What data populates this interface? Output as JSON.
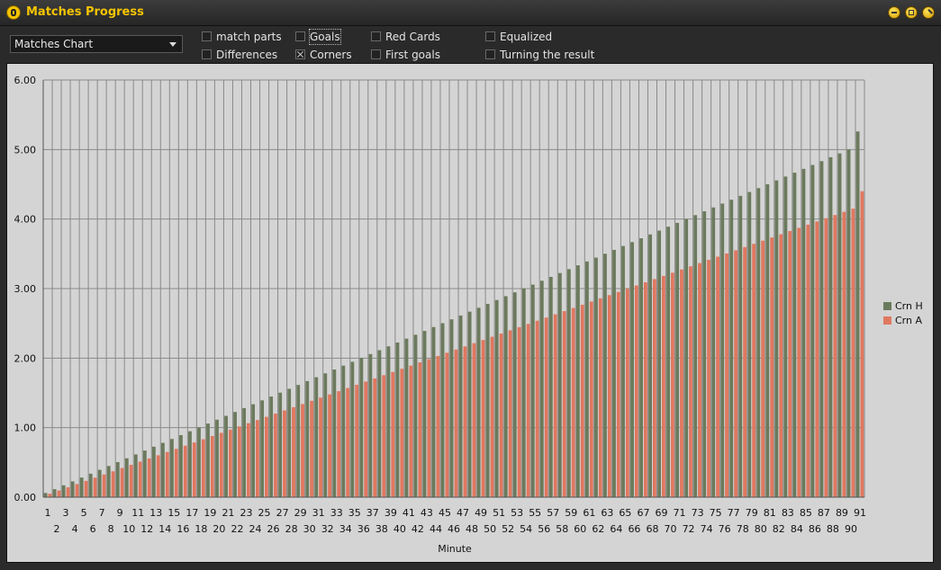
{
  "window": {
    "title": "Matches Progress"
  },
  "toolbar": {
    "chart_select": "Matches Chart",
    "checkboxes": [
      {
        "label": "match parts",
        "checked": false
      },
      {
        "label": "Goals",
        "checked": false
      },
      {
        "label": "Red Cards",
        "checked": false
      },
      {
        "label": "Equalized",
        "checked": false
      },
      {
        "label": "Differences",
        "checked": false
      },
      {
        "label": "Corners",
        "checked": true
      },
      {
        "label": "First goals",
        "checked": false
      },
      {
        "label": "Turning the result",
        "checked": false
      }
    ]
  },
  "colors": {
    "series_h": "#6b7a5c",
    "series_a": "#e07860",
    "accent": "#f5c400"
  },
  "chart_data": {
    "type": "bar",
    "xlabel": "Minute",
    "ylabel": "",
    "ylim": [
      0,
      6
    ],
    "yticks": [
      "0.00",
      "1.00",
      "2.00",
      "3.00",
      "4.00",
      "5.00",
      "6.00"
    ],
    "legend": "right",
    "grid": true,
    "x_start": 1,
    "x_end": 91,
    "series": [
      {
        "name": "Crn H",
        "start": 0.06,
        "end_at_90": 5.0,
        "last": 5.26
      },
      {
        "name": "Crn A",
        "start": 0.05,
        "end_at_90": 4.15,
        "last": 4.4
      }
    ]
  }
}
